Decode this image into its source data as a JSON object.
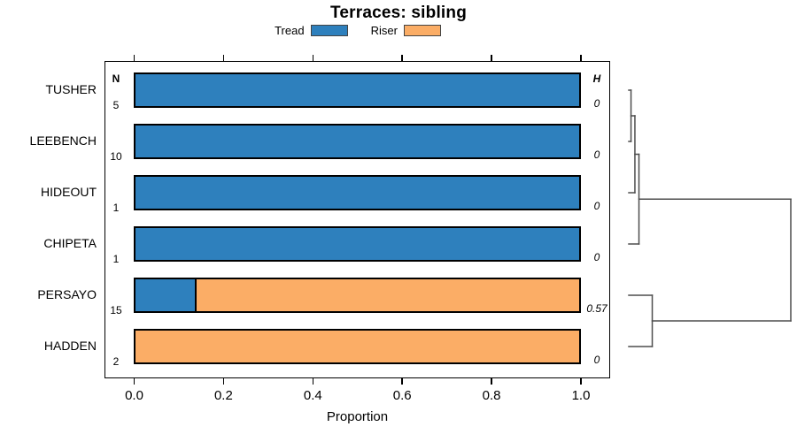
{
  "chart_data": {
    "type": "bar",
    "orientation": "horizontal-stacked",
    "title": "Terraces: sibling",
    "xlabel": "Proportion",
    "xlim": [
      0.0,
      1.0
    ],
    "x_ticks": [
      0.0,
      0.2,
      0.4,
      0.6,
      0.8,
      1.0
    ],
    "grid": false,
    "legend_position": "top-center",
    "series_names": [
      "Tread",
      "Riser"
    ],
    "series_colors": [
      "#2E80BD",
      "#FBAD66"
    ],
    "column_headers": {
      "n": "N",
      "h": "H"
    },
    "rows": [
      {
        "label": "TUSHER",
        "n": "5",
        "proportions": [
          1.0,
          0.0
        ],
        "h": "0"
      },
      {
        "label": "LEEBENCH",
        "n": "10",
        "proportions": [
          1.0,
          0.0
        ],
        "h": "0"
      },
      {
        "label": "HIDEOUT",
        "n": "1",
        "proportions": [
          1.0,
          0.0
        ],
        "h": "0"
      },
      {
        "label": "CHIPETA",
        "n": "1",
        "proportions": [
          1.0,
          0.0
        ],
        "h": "0"
      },
      {
        "label": "PERSAYO",
        "n": "15",
        "proportions": [
          0.133,
          0.867
        ],
        "h": "0.57"
      },
      {
        "label": "HADDEN",
        "n": "2",
        "proportions": [
          0.0,
          1.0
        ],
        "h": "0"
      }
    ],
    "dendrogram": {
      "leaf_order": [
        "TUSHER",
        "LEEBENCH",
        "HIDEOUT",
        "CHIPETA",
        "PERSAYO",
        "HADDEN"
      ],
      "segments": [
        {
          "x1": 0.0,
          "y1": 0,
          "x2": 0.014,
          "y2": 0
        },
        {
          "x1": 0.0,
          "y1": 1,
          "x2": 0.014,
          "y2": 1
        },
        {
          "x1": 0.014,
          "y1": 0,
          "x2": 0.014,
          "y2": 1
        },
        {
          "x1": 0.014,
          "y1": 0.5,
          "x2": 0.038,
          "y2": 0.5
        },
        {
          "x1": 0.0,
          "y1": 2,
          "x2": 0.038,
          "y2": 2
        },
        {
          "x1": 0.038,
          "y1": 0.5,
          "x2": 0.038,
          "y2": 2
        },
        {
          "x1": 0.038,
          "y1": 1.25,
          "x2": 0.063,
          "y2": 1.25
        },
        {
          "x1": 0.0,
          "y1": 3,
          "x2": 0.063,
          "y2": 3
        },
        {
          "x1": 0.063,
          "y1": 1.25,
          "x2": 0.063,
          "y2": 3
        },
        {
          "x1": 0.063,
          "y1": 2.125,
          "x2": 1.0,
          "y2": 2.125
        },
        {
          "x1": 0.0,
          "y1": 4,
          "x2": 0.145,
          "y2": 4
        },
        {
          "x1": 0.0,
          "y1": 5,
          "x2": 0.145,
          "y2": 5
        },
        {
          "x1": 0.145,
          "y1": 4,
          "x2": 0.145,
          "y2": 5
        },
        {
          "x1": 0.145,
          "y1": 4.5,
          "x2": 1.0,
          "y2": 4.5
        },
        {
          "x1": 1.0,
          "y1": 2.125,
          "x2": 1.0,
          "y2": 4.5
        }
      ]
    }
  },
  "colors": {
    "background": "#FFFFFF",
    "bar_border": "#000000",
    "plot_box_border": "#000000",
    "dendrogram_line": "#4D4D4D",
    "text": "#000000"
  }
}
